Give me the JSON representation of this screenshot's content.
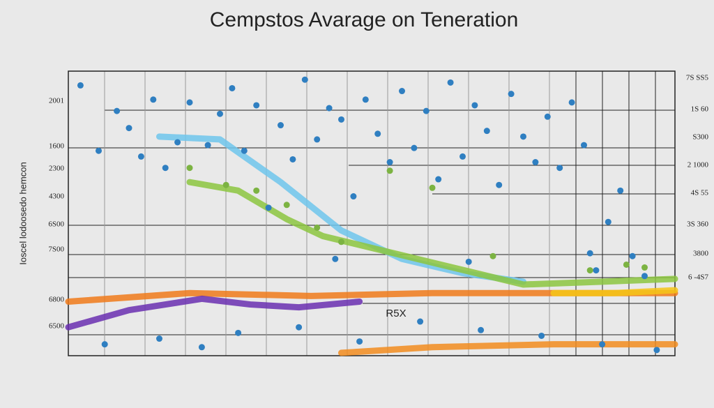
{
  "chart_data": {
    "type": "scatter",
    "title": "Cempstos Avarage on Teneration",
    "y_label": "Ioscel lodoosedo hemcon",
    "annotation": "R5X",
    "left_labels": [
      "2001",
      "1600",
      "2300",
      "4300",
      "6S00",
      "7S00",
      "6800",
      "6500"
    ],
    "right_labels": [
      "7S SS5",
      "1S 60",
      "S300",
      "2 1000",
      "4S 55",
      "3S 360",
      "3800",
      "6 -4S7"
    ],
    "xlim": [
      0,
      100
    ],
    "ylim": [
      0,
      100
    ],
    "series": [
      {
        "name": "blue",
        "color": "#2f7fc1",
        "x": [
          2,
          5,
          8,
          10,
          12,
          14,
          16,
          18,
          20,
          23,
          25,
          27,
          29,
          31,
          33,
          35,
          37,
          39,
          41,
          43,
          45,
          47,
          49,
          51,
          53,
          55,
          57,
          59,
          61,
          63,
          65,
          67,
          69,
          71,
          73,
          75,
          77,
          79,
          81,
          83,
          85,
          87,
          89,
          91,
          93,
          95,
          6,
          15,
          28,
          38,
          48,
          58,
          68,
          78,
          88,
          97,
          22,
          44,
          66,
          86
        ],
        "y": [
          95,
          72,
          86,
          80,
          70,
          90,
          66,
          75,
          89,
          74,
          85,
          94,
          72,
          88,
          52,
          81,
          69,
          97,
          76,
          87,
          83,
          56,
          90,
          78,
          68,
          93,
          73,
          86,
          62,
          96,
          70,
          88,
          79,
          60,
          92,
          77,
          68,
          84,
          66,
          89,
          74,
          30,
          47,
          58,
          35,
          28,
          4,
          6,
          8,
          10,
          5,
          12,
          9,
          7,
          4,
          2,
          3,
          34,
          33,
          36
        ]
      },
      {
        "name": "green",
        "color": "#7cb342",
        "x": [
          20,
          26,
          31,
          36,
          41,
          45,
          53,
          60,
          70,
          86,
          92,
          95
        ],
        "y": [
          66,
          60,
          58,
          53,
          45,
          40,
          65,
          59,
          35,
          30,
          32,
          31
        ]
      }
    ],
    "lines": [
      {
        "name": "orange",
        "color": "#f07a1a",
        "x": [
          0,
          20,
          40,
          60,
          80,
          100
        ],
        "y": [
          19,
          22,
          21,
          22,
          22,
          22
        ]
      },
      {
        "name": "purple",
        "color": "#6a2fb0",
        "x": [
          0,
          10,
          22,
          30,
          38,
          48
        ],
        "y": [
          10,
          16,
          20,
          18,
          17,
          19
        ]
      },
      {
        "name": "sky",
        "color": "#6fc6ec",
        "x": [
          15,
          25,
          35,
          45,
          55,
          65,
          75
        ],
        "y": [
          77,
          76,
          61,
          44,
          34,
          29,
          26
        ]
      },
      {
        "name": "lightgreen",
        "color": "#8cc63f",
        "x": [
          20,
          28,
          36,
          42,
          75,
          88,
          100
        ],
        "y": [
          61,
          58,
          48,
          42,
          25,
          26,
          27
        ]
      },
      {
        "name": "yellow",
        "color": "#f5c518",
        "x": [
          80,
          90,
          100
        ],
        "y": [
          22,
          22,
          23
        ]
      },
      {
        "name": "orange2",
        "color": "#f28c1e",
        "x": [
          45,
          60,
          80,
          100
        ],
        "y": [
          1,
          3,
          4,
          4
        ]
      }
    ]
  }
}
